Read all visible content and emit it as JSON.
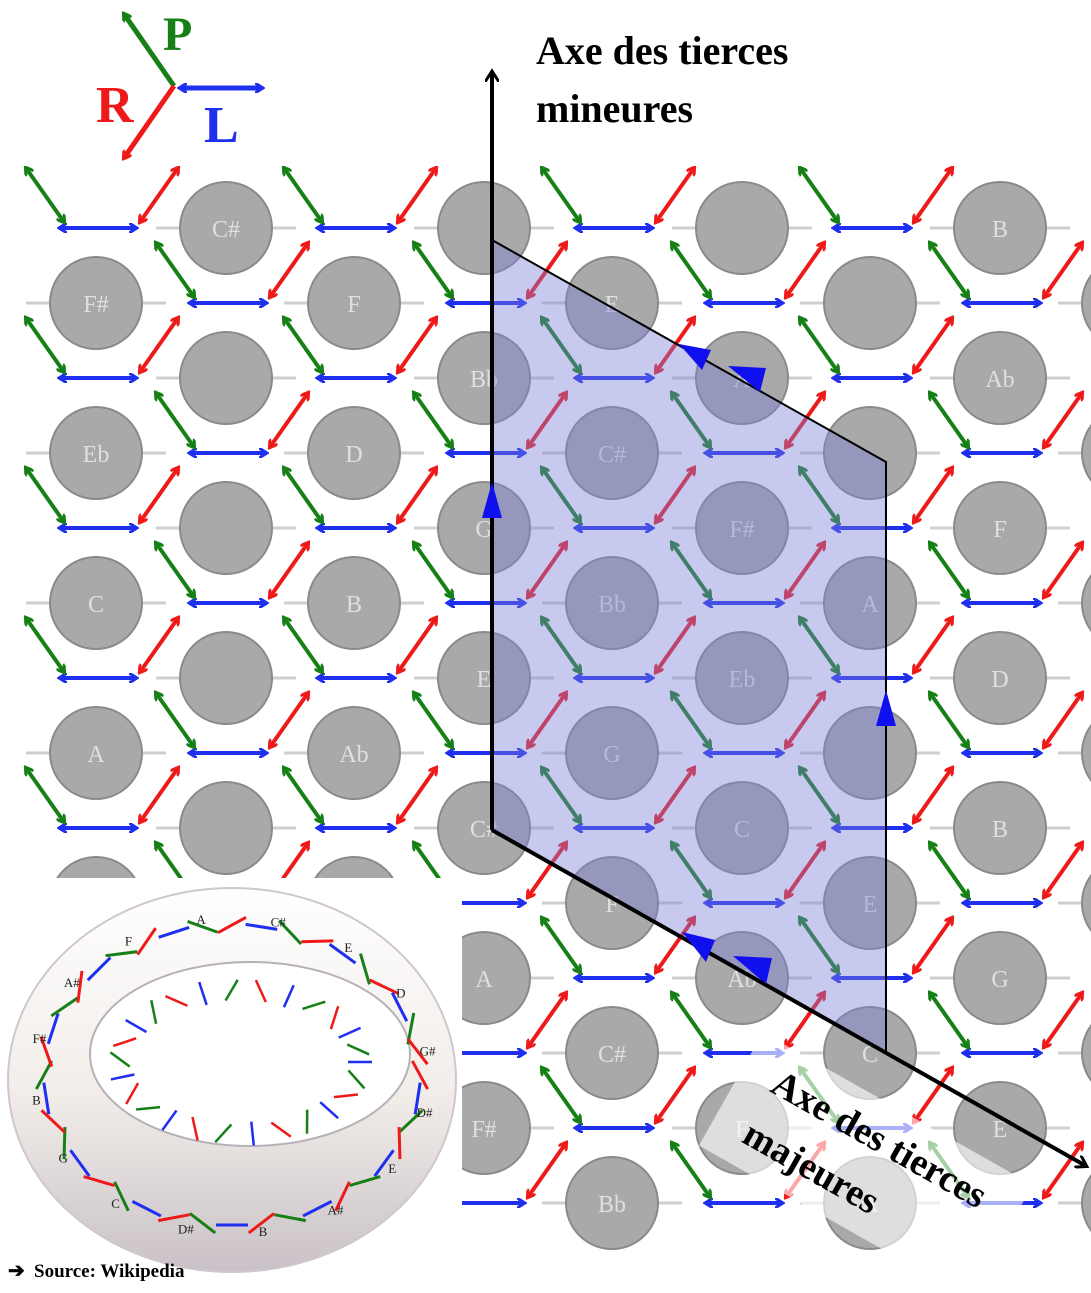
{
  "legend": {
    "p": "P",
    "r": "R",
    "l": "L",
    "colors": {
      "P": "#168016",
      "R": "#ee1a1a",
      "L": "#1f2ff0"
    }
  },
  "axes": {
    "minor_line1": "Axe des tierces",
    "minor_line2": "mineures",
    "major_line1": "Axe des tierces",
    "major_line2": "majeures"
  },
  "source": {
    "arrow_icon": "right-arrow-icon",
    "text": "Source: Wikipedia"
  },
  "grid": {
    "rows": [
      {
        "labels": [
          "C#",
          "",
          "",
          "B",
          "",
          "Bb"
        ]
      },
      {
        "labels": [
          "F#",
          "F",
          "E",
          "",
          "Eb",
          ""
        ]
      },
      {
        "labels": [
          "",
          "Bb",
          "A",
          "Ab",
          "",
          "G"
        ]
      },
      {
        "labels": [
          "Eb",
          "D",
          "C#",
          "",
          "C",
          ""
        ]
      },
      {
        "labels": [
          "",
          "G",
          "F#",
          "F",
          "",
          "E"
        ]
      },
      {
        "labels": [
          "C",
          "B",
          "Bb",
          "A",
          "",
          ""
        ]
      },
      {
        "labels": [
          "",
          "E",
          "Eb",
          "D",
          "C#",
          "C#"
        ]
      },
      {
        "labels": [
          "A",
          "Ab",
          "G",
          "",
          "F#",
          ""
        ]
      },
      {
        "labels": [
          "",
          "C#",
          "C",
          "B",
          "Bb",
          "Bb"
        ]
      },
      {
        "labels": [
          "",
          "",
          "F",
          "E",
          "Eb",
          ""
        ]
      },
      {
        "labels": [
          "",
          "A",
          "Ab",
          "G",
          "",
          "G"
        ]
      },
      {
        "labels": [
          "",
          "",
          "C#",
          "C",
          "B",
          ""
        ]
      },
      {
        "labels": [
          "",
          "F#",
          "F",
          "E",
          "",
          ""
        ]
      },
      {
        "labels": [
          "",
          "",
          "Bb",
          "A",
          "Ab",
          ""
        ]
      }
    ]
  },
  "torus": {
    "labels": [
      "C",
      "G",
      "B",
      "F#",
      "A#",
      "F",
      "A",
      "C#",
      "E",
      "D",
      "G#",
      "D#",
      "E",
      "A#",
      "B",
      "D#"
    ]
  }
}
